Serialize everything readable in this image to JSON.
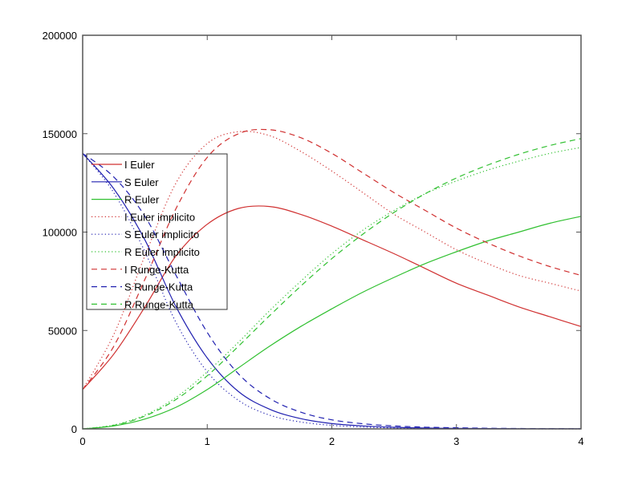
{
  "chart_data": {
    "type": "line",
    "title": "",
    "xlabel": "",
    "ylabel": "",
    "xlim": [
      0,
      4
    ],
    "ylim": [
      0,
      200000
    ],
    "x_ticks": [
      0,
      1,
      2,
      3,
      4
    ],
    "x_tick_labels": [
      "0",
      "1",
      "2",
      "3",
      "4"
    ],
    "y_ticks": [
      0,
      50000,
      100000,
      150000,
      200000
    ],
    "y_tick_labels": [
      "0",
      "50000",
      "100000",
      "150000",
      "200000"
    ],
    "grid": false,
    "legend_position": "upper-left (inside)",
    "x": [
      0,
      0.25,
      0.5,
      0.75,
      1.0,
      1.25,
      1.5,
      1.75,
      2.0,
      2.25,
      2.5,
      2.75,
      3.0,
      3.25,
      3.5,
      3.75,
      4.0
    ],
    "series": [
      {
        "name": "I Euler",
        "color": "#d03030",
        "style": "solid",
        "values": [
          20000,
          38000,
          62000,
          88000,
          104000,
          112000,
          113000,
          109000,
          103000,
          96000,
          89000,
          81500,
          74000,
          68000,
          62000,
          57000,
          52000
        ]
      },
      {
        "name": "S Euler",
        "color": "#2020b0",
        "style": "solid",
        "values": [
          140000,
          122000,
          96000,
          62000,
          36000,
          19000,
          10000,
          5200,
          2700,
          1500,
          800,
          450,
          250,
          150,
          90,
          50,
          30
        ]
      },
      {
        "name": "R Euler",
        "color": "#30c030",
        "style": "solid",
        "values": [
          0,
          1500,
          5000,
          11000,
          20000,
          31000,
          42000,
          52000,
          61000,
          69500,
          77000,
          84000,
          90000,
          95500,
          100000,
          104500,
          108000
        ]
      },
      {
        "name": "I Euler implicito",
        "color": "#d03030",
        "style": "dotted",
        "values": [
          20000,
          48000,
          88000,
          125000,
          145000,
          151000,
          149000,
          141000,
          131000,
          120000,
          109000,
          100000,
          91000,
          84000,
          78000,
          74000,
          70000
        ]
      },
      {
        "name": "S Euler implicito",
        "color": "#2020b0",
        "style": "dotted",
        "values": [
          140000,
          120000,
          90000,
          54000,
          29000,
          14500,
          7000,
          3500,
          1800,
          900,
          450,
          220,
          110,
          60,
          30,
          15,
          8
        ]
      },
      {
        "name": "R Euler implicito",
        "color": "#30c030",
        "style": "dotted",
        "values": [
          0,
          2000,
          7000,
          16000,
          29000,
          44000,
          60000,
          75000,
          89000,
          101000,
          111000,
          119500,
          126000,
          131500,
          136000,
          140000,
          143000
        ]
      },
      {
        "name": "I Runge-Kutta",
        "color": "#d03030",
        "style": "dashed",
        "values": [
          20000,
          42000,
          76000,
          112000,
          138000,
          150000,
          152000,
          148000,
          140000,
          130000,
          120000,
          111000,
          102000,
          94500,
          88000,
          82500,
          78000
        ]
      },
      {
        "name": "S Runge-Kutta",
        "color": "#2020b0",
        "style": "dashed",
        "values": [
          140000,
          128000,
          108000,
          78000,
          49000,
          28000,
          15500,
          8500,
          4600,
          2600,
          1500,
          900,
          550,
          330,
          200,
          120,
          75
        ]
      },
      {
        "name": "R Runge-Kutta",
        "color": "#30c030",
        "style": "dashed",
        "values": [
          0,
          1800,
          6500,
          15000,
          27000,
          42000,
          57500,
          72500,
          86500,
          99000,
          110000,
          119500,
          127500,
          134000,
          139500,
          144000,
          147500
        ]
      }
    ]
  }
}
